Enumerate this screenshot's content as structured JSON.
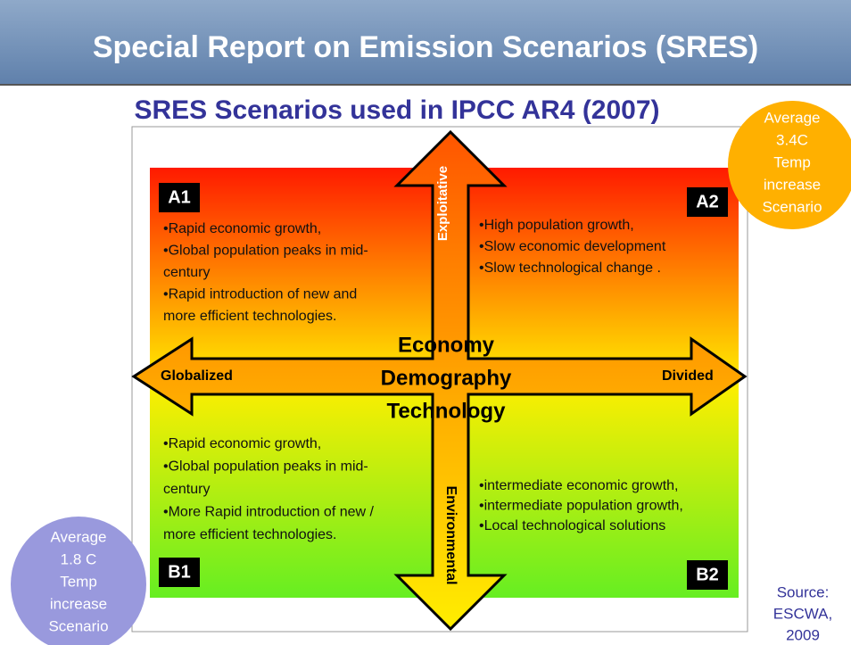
{
  "header": {
    "title": "Special Report on Emission Scenarios (SRES)",
    "subtitle": "SRES Scenarios used in IPCC AR4 (2007)"
  },
  "quadrants": [
    {
      "label": "A1",
      "lines": [
        "•Rapid economic growth,",
        "•Global population peaks in mid-",
        "century",
        "•Rapid introduction of new and",
        "more efficient technologies."
      ]
    },
    {
      "label": "A2",
      "lines": [
        "•High population growth,",
        "•Slow economic development",
        "•Slow technological change ."
      ]
    },
    {
      "label": "B1",
      "lines": [
        "•Rapid economic growth,",
        "•Global population peaks in mid-",
        "century",
        "•More Rapid introduction of new /",
        "more efficient technologies."
      ]
    },
    {
      "label": "B2",
      "lines": [
        "•intermediate economic growth,",
        "•intermediate population growth,",
        "•Local technological solutions"
      ]
    }
  ],
  "axes": {
    "top": "Exploitative",
    "bottom": "Environmental",
    "left": "Globalized",
    "right": "Divided"
  },
  "center": [
    "Economy",
    "Demography",
    "Technology"
  ],
  "badges": [
    {
      "lines": [
        "Average",
        "3.4C",
        "Temp",
        "increase",
        "Scenario"
      ]
    },
    {
      "lines": [
        "Average",
        "1.8 C",
        "Temp",
        "increase",
        "Scenario"
      ]
    }
  ],
  "source": [
    "Source:",
    "ESCWA,",
    "2009"
  ]
}
